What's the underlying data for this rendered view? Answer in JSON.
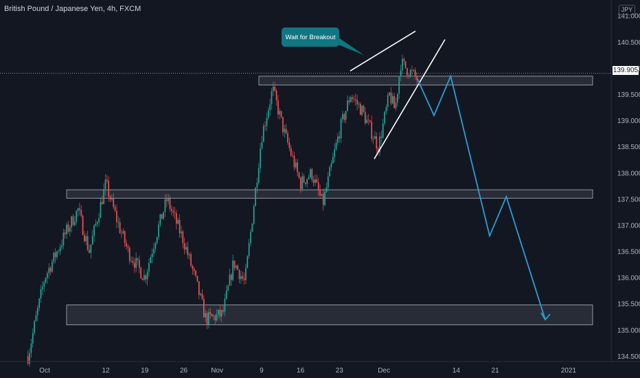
{
  "header": {
    "title": "British Pound / Japanese Yen, 4h, FXCM"
  },
  "currency": "JPY",
  "current_price": "139.905",
  "annotation": {
    "text": "Wait for Breakout"
  },
  "colors": {
    "background": "#131722",
    "bull": "#26a69a",
    "bear": "#ef5350",
    "projection": "#2c9fd6",
    "zone": "#787b86"
  },
  "chart_data": {
    "type": "candlestick",
    "title": "British Pound / Japanese Yen, 4h, FXCM",
    "x_tick_labels": [
      "Oct",
      "12",
      "19",
      "26",
      "Nov",
      "9",
      "16",
      "23",
      "Dec",
      "14",
      "21",
      "2021"
    ],
    "y_tick_labels": [
      "134.500",
      "135.000",
      "135.500",
      "136.000",
      "136.500",
      "137.000",
      "137.500",
      "138.000",
      "138.500",
      "139.000",
      "139.500",
      "140.000",
      "140.500",
      "141.000"
    ],
    "ylim": [
      134.4,
      141.2
    ],
    "current_price": 139.905,
    "price_path_approx": [
      {
        "x": "Sep 28",
        "y": 134.5
      },
      {
        "x": "Oct 1",
        "y": 136.0
      },
      {
        "x": "Oct 5",
        "y": 136.9
      },
      {
        "x": "Oct 7",
        "y": 137.3
      },
      {
        "x": "Oct 9",
        "y": 136.5
      },
      {
        "x": "Oct 12",
        "y": 137.8
      },
      {
        "x": "Oct 14",
        "y": 137.1
      },
      {
        "x": "Oct 16",
        "y": 136.5
      },
      {
        "x": "Oct 19",
        "y": 136.0
      },
      {
        "x": "Oct 21",
        "y": 136.8
      },
      {
        "x": "Oct 23",
        "y": 137.5
      },
      {
        "x": "Oct 26",
        "y": 136.7
      },
      {
        "x": "Oct 28",
        "y": 136.0
      },
      {
        "x": "Oct 30",
        "y": 135.2
      },
      {
        "x": "Nov 2",
        "y": 135.3
      },
      {
        "x": "Nov 4",
        "y": 136.3
      },
      {
        "x": "Nov 6",
        "y": 135.9
      },
      {
        "x": "Nov 9",
        "y": 138.7
      },
      {
        "x": "Nov 11",
        "y": 139.6
      },
      {
        "x": "Nov 13",
        "y": 138.8
      },
      {
        "x": "Nov 16",
        "y": 137.8
      },
      {
        "x": "Nov 18",
        "y": 138.0
      },
      {
        "x": "Nov 20",
        "y": 137.4
      },
      {
        "x": "Nov 23",
        "y": 138.8
      },
      {
        "x": "Nov 25",
        "y": 139.5
      },
      {
        "x": "Nov 27",
        "y": 139.2
      },
      {
        "x": "Nov 30",
        "y": 138.5
      },
      {
        "x": "Dec 2",
        "y": 139.5
      },
      {
        "x": "Dec 3",
        "y": 139.2
      },
      {
        "x": "Dec 4",
        "y": 140.1
      },
      {
        "x": "Dec 7",
        "y": 139.8
      }
    ],
    "zones": [
      {
        "low": 139.68,
        "high": 139.85
      },
      {
        "low": 137.52,
        "high": 137.68
      },
      {
        "low": 135.1,
        "high": 135.48
      }
    ],
    "projection_path_approx": [
      {
        "x": "Dec 7",
        "y": 139.8
      },
      {
        "x": "Dec 10",
        "y": 139.1
      },
      {
        "x": "Dec 13",
        "y": 139.85
      },
      {
        "x": "Dec 20",
        "y": 136.8
      },
      {
        "x": "Dec 23",
        "y": 137.55
      },
      {
        "x": "Dec 30",
        "y": 135.2
      }
    ],
    "grid": false
  }
}
